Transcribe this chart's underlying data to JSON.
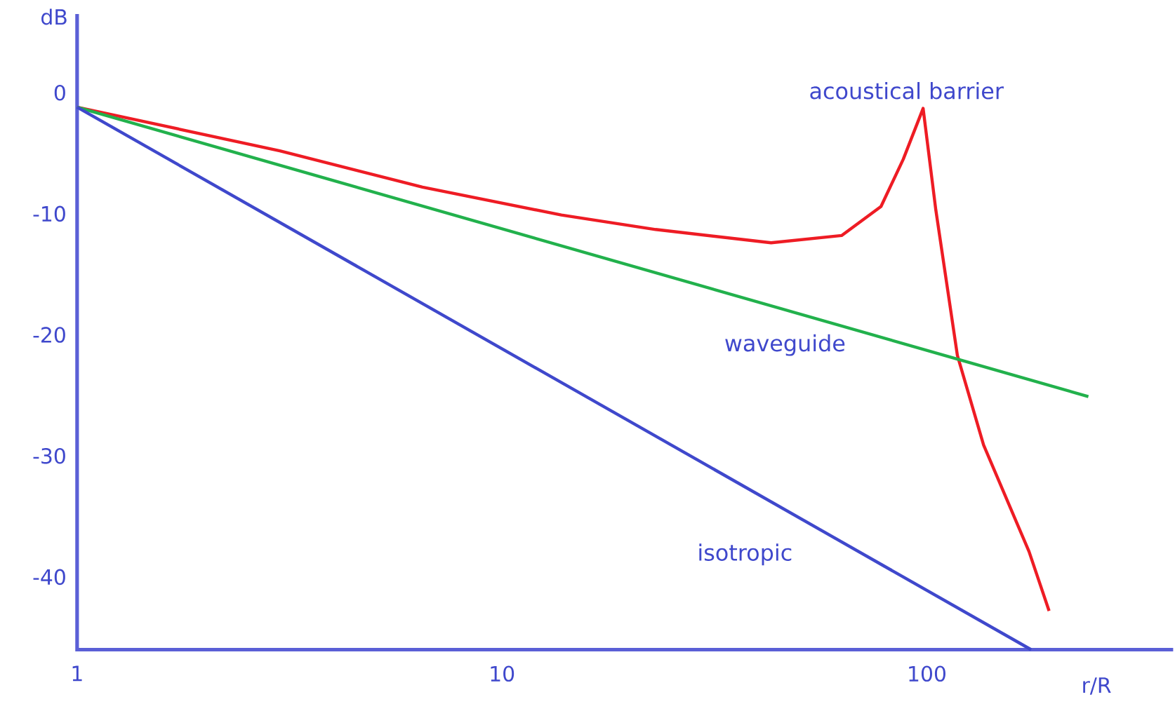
{
  "chart_data": {
    "type": "line",
    "xlabel": "r/R",
    "ylabel": "dB",
    "log": "x",
    "xlim": [
      1,
      380
    ],
    "ylim": [
      -46,
      6.5
    ],
    "xticks": [
      1,
      10,
      100
    ],
    "yticks": [
      0,
      -10,
      -20,
      -30,
      -40
    ],
    "series": [
      {
        "name": "acoustical barrier",
        "color": "#ee1c24",
        "x": [
          1,
          3.0,
          6.5,
          13.8,
          23,
          43,
          63,
          78,
          88,
          98,
          105,
          118,
          136,
          174,
          194
        ],
        "values": [
          -1.2,
          -4.8,
          -7.8,
          -10.1,
          -11.3,
          -12.4,
          -11.8,
          -9.4,
          -5.5,
          -1.3,
          -9.7,
          -21.7,
          -29.1,
          -37.9,
          -42.8
        ]
      },
      {
        "name": "waveguide",
        "color": "#22b14c",
        "x": [
          1,
          240
        ],
        "values": [
          -1.2,
          -25.1
        ]
      },
      {
        "name": "isotropic",
        "color": "#3f48cc",
        "x": [
          1,
          176
        ],
        "values": [
          -1.2,
          -46
        ]
      }
    ]
  }
}
